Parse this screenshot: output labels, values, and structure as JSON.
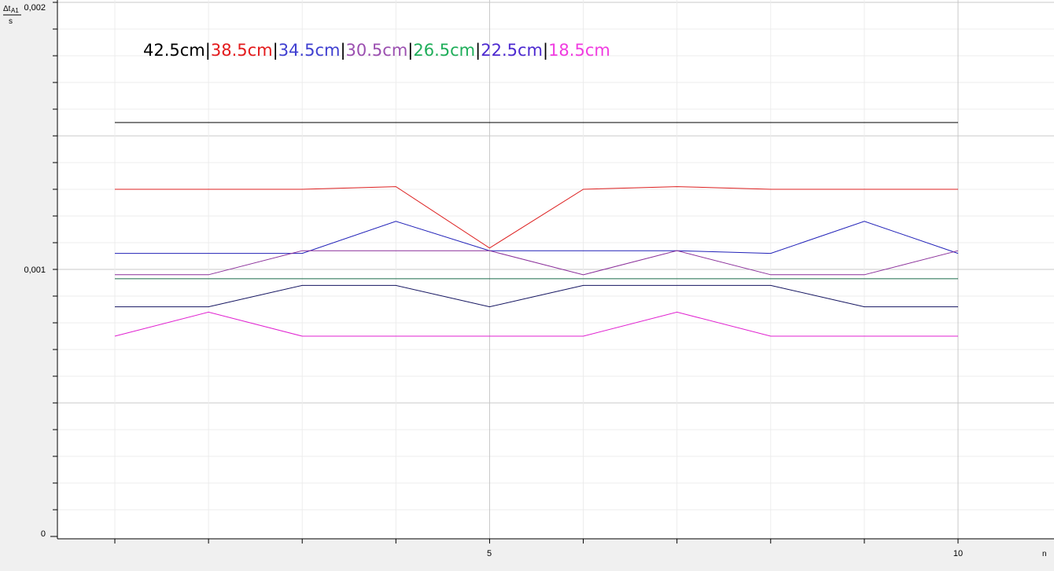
{
  "chart_data": {
    "type": "line",
    "ylabel_numerator": "Δt",
    "ylabel_subscript": "A1",
    "ylabel_unit": "s",
    "xlabel": "n",
    "ylim": [
      0,
      0.002
    ],
    "xlim": [
      0.4,
      11.95
    ],
    "x_ticks": [
      "5",
      "10"
    ],
    "y_ticks": [
      "0",
      "0,001",
      "0,002"
    ],
    "grid": true,
    "legend_position": "top-left",
    "legend_separator": "|",
    "x": [
      1,
      2,
      3,
      4,
      5,
      6,
      7,
      8,
      9,
      10
    ],
    "series": [
      {
        "name": "42.5cm",
        "color": "#000000",
        "values": [
          0.00155,
          0.00155,
          0.00155,
          0.00155,
          0.00155,
          0.00155,
          0.00155,
          0.00155,
          0.00155,
          0.00155
        ]
      },
      {
        "name": "38.5cm",
        "color": "#e31a1c",
        "values": [
          0.0013,
          0.0013,
          0.0013,
          0.00131,
          0.00108,
          0.0013,
          0.00131,
          0.0013,
          0.0013,
          0.0013
        ]
      },
      {
        "name": "34.5cm",
        "color": "#3f3fd0",
        "values": [
          0.00106,
          0.00106,
          0.00106,
          0.00118,
          0.00107,
          0.00107,
          0.00107,
          0.00106,
          0.00118,
          0.00106
        ]
      },
      {
        "name": "30.5cm",
        "color": "#9b4fb0",
        "values": [
          0.00098,
          0.00098,
          0.00107,
          0.00107,
          0.00107,
          0.00098,
          0.00107,
          0.00098,
          0.00098,
          0.00107
        ]
      },
      {
        "name": "26.5cm",
        "color": "#1fae5a",
        "values": [
          0.000965,
          0.000965,
          0.000965,
          0.000965,
          0.000965,
          0.000965,
          0.000965,
          0.000965,
          0.000965,
          0.000965
        ]
      },
      {
        "name": "22.5cm",
        "color": "#4d2ad0",
        "values": [
          0.00086,
          0.00086,
          0.00094,
          0.00094,
          0.00086,
          0.00094,
          0.00094,
          0.00094,
          0.00086,
          0.00086
        ]
      },
      {
        "name": "18.5cm",
        "color": "#f03ce0",
        "values": [
          0.00075,
          0.00084,
          0.00075,
          0.00075,
          0.00075,
          0.00075,
          0.00084,
          0.00075,
          0.00075,
          0.00075
        ]
      }
    ]
  },
  "series_line_colors": [
    "#000000",
    "#dd2020",
    "#2020b8",
    "#8a2f9a",
    "#1a6a4a",
    "#141460",
    "#e020d0"
  ]
}
